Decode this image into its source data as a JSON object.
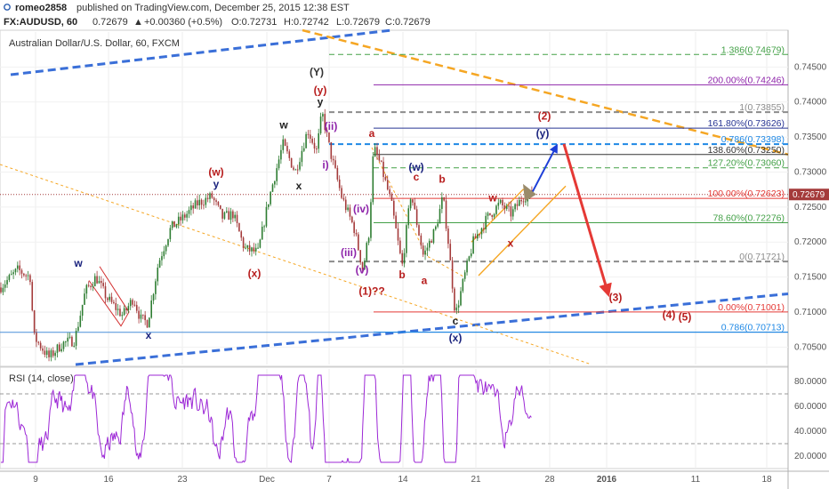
{
  "header": {
    "author": "romeo2858",
    "published": "published on TradingView.com, December 25, 2015 12:38 EST",
    "symbol_line": "FX:AUDUSD, 60",
    "last": "0.72679",
    "change": "+0.00360 (+0.5%)",
    "open": "O:0.72731",
    "high": "H:0.72742",
    "low": "L:0.72679",
    "close": "C:0.72679"
  },
  "instrument_label": "Australian Dollar/U.S. Dollar, 60, FXCM",
  "rsi_label": "RSI (14, close)",
  "price_badge": "0.72679",
  "colors": {
    "up": "#2e7d32",
    "down": "#a43a3a",
    "rsi": "#9c27d6",
    "fib_red": "#e53935",
    "fib_blue": "#1e88e5",
    "fib_green": "#43a047",
    "fib_gray": "#8c8c8c",
    "fib_purple": "#8e24aa",
    "fib_navy": "#283593",
    "trend_blue": "#3a6fd8",
    "trend_orange": "#f5a623",
    "forecast_red": "#e53935"
  },
  "chart_data": {
    "type": "candlestick",
    "main": {
      "ylim": [
        0.7025,
        0.75
      ],
      "y_ticks": [
        "0.74500",
        "0.74000",
        "0.73500",
        "0.73000",
        "0.72500",
        "0.72000",
        "0.71500",
        "0.71000",
        "0.70500"
      ],
      "x_ticks": [
        "9",
        "16",
        "23",
        "Dec",
        "7",
        "14",
        "21",
        "28",
        "2016",
        "11",
        "18"
      ],
      "price_path": [
        [
          0,
          0.7135
        ],
        [
          20,
          0.716
        ],
        [
          34,
          0.715
        ],
        [
          38,
          0.7065
        ],
        [
          55,
          0.7035
        ],
        [
          70,
          0.7055
        ],
        [
          84,
          0.706
        ],
        [
          96,
          0.713
        ],
        [
          108,
          0.715
        ],
        [
          120,
          0.712
        ],
        [
          138,
          0.7095
        ],
        [
          150,
          0.712
        ],
        [
          158,
          0.709
        ],
        [
          166,
          0.7085
        ],
        [
          178,
          0.717
        ],
        [
          192,
          0.722
        ],
        [
          206,
          0.7235
        ],
        [
          222,
          0.7255
        ],
        [
          238,
          0.7265
        ],
        [
          250,
          0.7235
        ],
        [
          262,
          0.724
        ],
        [
          275,
          0.719
        ],
        [
          290,
          0.7185
        ],
        [
          302,
          0.726
        ],
        [
          318,
          0.734
        ],
        [
          332,
          0.73
        ],
        [
          346,
          0.736
        ],
        [
          356,
          0.733
        ],
        [
          362,
          0.7385
        ],
        [
          372,
          0.7325
        ],
        [
          384,
          0.7265
        ],
        [
          398,
          0.722
        ],
        [
          408,
          0.716
        ],
        [
          415,
          0.7215
        ],
        [
          420,
          0.7335
        ],
        [
          428,
          0.731
        ],
        [
          440,
          0.7255
        ],
        [
          452,
          0.7165
        ],
        [
          462,
          0.727
        ],
        [
          476,
          0.718
        ],
        [
          490,
          0.722
        ],
        [
          498,
          0.7265
        ],
        [
          504,
          0.72
        ],
        [
          512,
          0.7095
        ],
        [
          522,
          0.715
        ],
        [
          532,
          0.72
        ],
        [
          548,
          0.7235
        ],
        [
          562,
          0.7255
        ],
        [
          575,
          0.724
        ],
        [
          588,
          0.7265
        ],
        [
          598,
          0.7268
        ]
      ],
      "fib_levels": [
        {
          "label": "1.386(0.74679)",
          "value": 0.74679,
          "color": "#43a047",
          "style": "dash"
        },
        {
          "label": "200.00%(0.74246)",
          "value": 0.74246,
          "color": "#8e24aa",
          "style": "solid"
        },
        {
          "label": "1(0.73855)",
          "value": 0.73855,
          "color": "#8c8c8c",
          "style": "dash"
        },
        {
          "label": "161.80%(0.73626)",
          "value": 0.73626,
          "color": "#283593",
          "style": "solid"
        },
        {
          "label": "0.786(0.73398)",
          "value": 0.73398,
          "color": "#1e88e5",
          "style": "dash"
        },
        {
          "label": "138.60%(0.73250)",
          "value": 0.7325,
          "color": "#333333",
          "style": "solid"
        },
        {
          "label": "127.20%(0.73060)",
          "value": 0.7306,
          "color": "#43a047",
          "style": "dash"
        },
        {
          "label": "100.00%(0.72623)",
          "value": 0.72623,
          "color": "#e53935",
          "style": "solid"
        },
        {
          "label": "78.60%(0.72276)",
          "value": 0.72276,
          "color": "#43a047",
          "style": "solid"
        },
        {
          "label": "0(0.71721)",
          "value": 0.71721,
          "color": "#8c8c8c",
          "style": "dash"
        },
        {
          "label": "0.00%(0.71001)",
          "value": 0.71001,
          "color": "#e53935",
          "style": "solid"
        },
        {
          "label": "0.786(0.70713)",
          "value": 0.70713,
          "color": "#1e88e5",
          "style": "solid"
        }
      ],
      "wave_labels": [
        {
          "text": "w",
          "x": 88,
          "p": 0.7165,
          "color": "#1a237e"
        },
        {
          "text": "x",
          "x": 167,
          "p": 0.7062,
          "color": "#1a237e"
        },
        {
          "text": "(w)",
          "x": 243,
          "p": 0.7295,
          "color": "#b71c1c"
        },
        {
          "text": "y",
          "x": 243,
          "p": 0.7278,
          "color": "#1a237e"
        },
        {
          "text": "(x)",
          "x": 286,
          "p": 0.715,
          "color": "#b71c1c"
        },
        {
          "text": "w",
          "x": 319,
          "p": 0.7362,
          "color": "#222222"
        },
        {
          "text": "x",
          "x": 336,
          "p": 0.7275,
          "color": "#222222"
        },
        {
          "text": "(Y)",
          "x": 356,
          "p": 0.7438,
          "color": "#333333"
        },
        {
          "text": "(y)",
          "x": 360,
          "p": 0.7412,
          "color": "#b71c1c"
        },
        {
          "text": "y",
          "x": 360,
          "p": 0.7395,
          "color": "#222222"
        },
        {
          "text": "(ii)",
          "x": 372,
          "p": 0.736,
          "color": "#8e24aa"
        },
        {
          "text": "i)",
          "x": 366,
          "p": 0.7305,
          "color": "#8e24aa"
        },
        {
          "text": "(iv)",
          "x": 406,
          "p": 0.7242,
          "color": "#8e24aa"
        },
        {
          "text": "(iii)",
          "x": 392,
          "p": 0.718,
          "color": "#8e24aa"
        },
        {
          "text": "(v)",
          "x": 407,
          "p": 0.7155,
          "color": "#8e24aa"
        },
        {
          "text": "(1)??",
          "x": 418,
          "p": 0.7125,
          "color": "#b71c1c"
        },
        {
          "text": "a",
          "x": 418,
          "p": 0.735,
          "color": "#b71c1c"
        },
        {
          "text": "(w)",
          "x": 468,
          "p": 0.7302,
          "color": "#1a237e"
        },
        {
          "text": "c",
          "x": 468,
          "p": 0.7288,
          "color": "#b71c1c"
        },
        {
          "text": "b",
          "x": 497,
          "p": 0.7285,
          "color": "#b71c1c"
        },
        {
          "text": "b",
          "x": 452,
          "p": 0.7148,
          "color": "#b71c1c"
        },
        {
          "text": "a",
          "x": 477,
          "p": 0.714,
          "color": "#b71c1c"
        },
        {
          "text": "c",
          "x": 512,
          "p": 0.7082,
          "color": "#222222"
        },
        {
          "text": "(x)",
          "x": 512,
          "p": 0.7058,
          "color": "#1a237e"
        },
        {
          "text": "w",
          "x": 554,
          "p": 0.7258,
          "color": "#b71c1c"
        },
        {
          "text": "x",
          "x": 574,
          "p": 0.7193,
          "color": "#b71c1c"
        },
        {
          "text": "(2)",
          "x": 612,
          "p": 0.7375,
          "color": "#b71c1c"
        },
        {
          "text": "(y)",
          "x": 610,
          "p": 0.735,
          "color": "#1a237e"
        },
        {
          "text": "(3)",
          "x": 692,
          "p": 0.7116,
          "color": "#b71c1c"
        },
        {
          "text": "(4)",
          "x": 752,
          "p": 0.7091,
          "color": "#b71c1c"
        },
        {
          "text": "(5)",
          "x": 770,
          "p": 0.7088,
          "color": "#b71c1c"
        }
      ]
    },
    "rsi": {
      "ylim": [
        10,
        90
      ],
      "y_ticks": [
        "80.0000",
        "60.0000",
        "40.0000",
        "20.0000"
      ],
      "bands": [
        70,
        30
      ]
    }
  }
}
